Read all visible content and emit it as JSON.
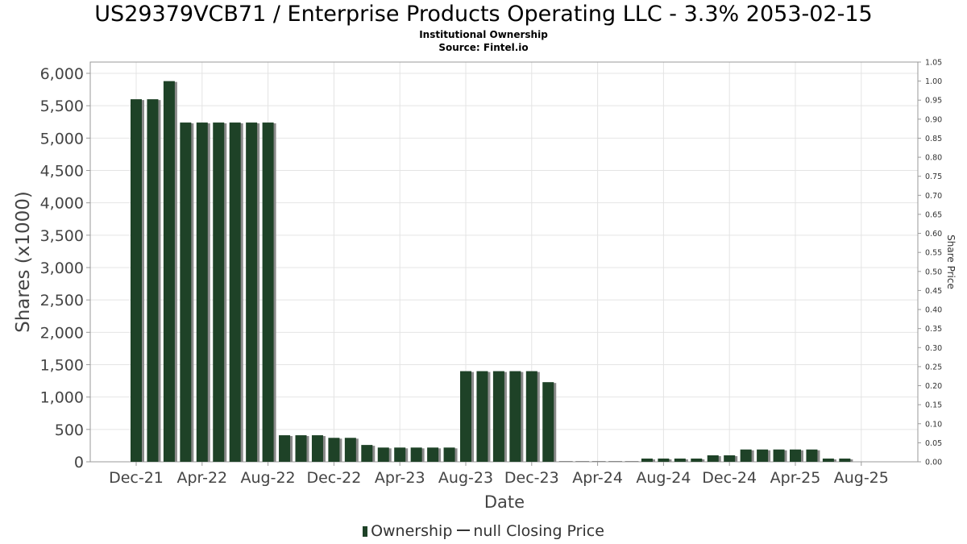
{
  "chart_data": {
    "type": "bar",
    "title": "US29379VCB71 / Enterprise Products Operating LLC - 3.3% 2053-02-15",
    "subtitle": [
      "Institutional Ownership",
      "Source: Fintel.io"
    ],
    "xlabel": "Date",
    "ylabel": "Shares (x1000)",
    "y2label": "Share Price",
    "ylim": [
      0,
      6000
    ],
    "y2lim": [
      0,
      1.05
    ],
    "yticks": [
      "0",
      "500",
      "1,000",
      "1,500",
      "2,000",
      "2,500",
      "3,000",
      "3,500",
      "4,000",
      "4,500",
      "5,000",
      "5,500",
      "6,000"
    ],
    "y2ticks": [
      "0.00",
      "0.05",
      "0.10",
      "0.15",
      "0.20",
      "0.25",
      "0.30",
      "0.35",
      "0.40",
      "0.45",
      "0.50",
      "0.55",
      "0.60",
      "0.65",
      "0.70",
      "0.75",
      "0.80",
      "0.85",
      "0.90",
      "0.95",
      "1.00",
      "1.05"
    ],
    "xticks": [
      "Dec-21",
      "Apr-22",
      "Aug-22",
      "Dec-22",
      "Apr-23",
      "Aug-23",
      "Dec-23",
      "Apr-24",
      "Aug-24",
      "Dec-24",
      "Apr-25",
      "Aug-25"
    ],
    "grid": true,
    "legend_position": "bottom",
    "series": [
      {
        "name": "Ownership",
        "color": "#1e4227",
        "values": [
          5600,
          5600,
          5880,
          5240,
          5240,
          5240,
          5240,
          5240,
          5240,
          410,
          410,
          410,
          370,
          370,
          260,
          220,
          220,
          220,
          220,
          220,
          1400,
          1400,
          1400,
          1400,
          1400,
          1230,
          0,
          0,
          0,
          0,
          0,
          50,
          50,
          50,
          50,
          100,
          100,
          190,
          190,
          190,
          190,
          190,
          50,
          50
        ]
      },
      {
        "name": "null Closing Price",
        "color": "#333333",
        "values": []
      }
    ]
  },
  "legend": {
    "ownership_label": "Ownership",
    "price_label": "null Closing Price"
  }
}
